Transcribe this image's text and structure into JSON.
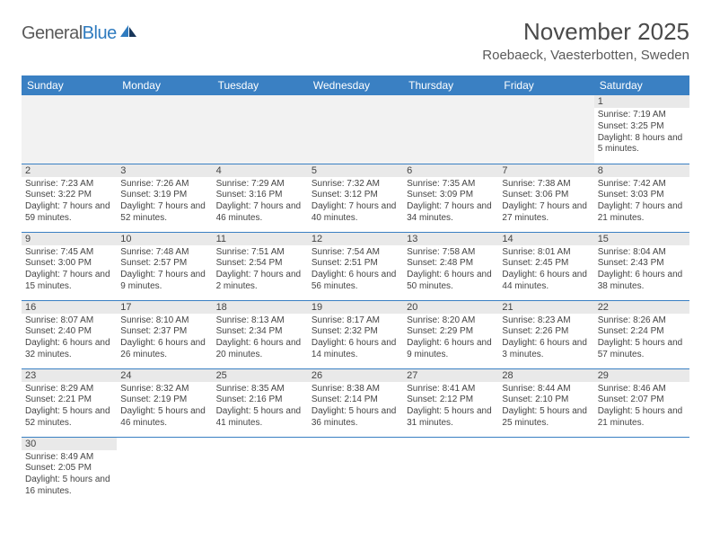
{
  "logo": {
    "text1": "General",
    "text2": "Blue"
  },
  "title": "November 2025",
  "location": "Roebaeck, Vaesterbotten, Sweden",
  "colors": {
    "header_bg": "#3a80c3",
    "header_text": "#ffffff",
    "cell_border": "#3a80c3",
    "daynum_bg": "#e9e9e9",
    "empty_bg": "#f2f2f2",
    "text": "#444444",
    "title_text": "#4a4a4a",
    "logo_gray": "#5a5a5a",
    "logo_blue": "#2f7bbf"
  },
  "day_headers": [
    "Sunday",
    "Monday",
    "Tuesday",
    "Wednesday",
    "Thursday",
    "Friday",
    "Saturday"
  ],
  "weeks": [
    [
      null,
      null,
      null,
      null,
      null,
      null,
      {
        "n": "1",
        "sr": "Sunrise: 7:19 AM",
        "ss": "Sunset: 3:25 PM",
        "dl": "Daylight: 8 hours and 5 minutes."
      }
    ],
    [
      {
        "n": "2",
        "sr": "Sunrise: 7:23 AM",
        "ss": "Sunset: 3:22 PM",
        "dl": "Daylight: 7 hours and 59 minutes."
      },
      {
        "n": "3",
        "sr": "Sunrise: 7:26 AM",
        "ss": "Sunset: 3:19 PM",
        "dl": "Daylight: 7 hours and 52 minutes."
      },
      {
        "n": "4",
        "sr": "Sunrise: 7:29 AM",
        "ss": "Sunset: 3:16 PM",
        "dl": "Daylight: 7 hours and 46 minutes."
      },
      {
        "n": "5",
        "sr": "Sunrise: 7:32 AM",
        "ss": "Sunset: 3:12 PM",
        "dl": "Daylight: 7 hours and 40 minutes."
      },
      {
        "n": "6",
        "sr": "Sunrise: 7:35 AM",
        "ss": "Sunset: 3:09 PM",
        "dl": "Daylight: 7 hours and 34 minutes."
      },
      {
        "n": "7",
        "sr": "Sunrise: 7:38 AM",
        "ss": "Sunset: 3:06 PM",
        "dl": "Daylight: 7 hours and 27 minutes."
      },
      {
        "n": "8",
        "sr": "Sunrise: 7:42 AM",
        "ss": "Sunset: 3:03 PM",
        "dl": "Daylight: 7 hours and 21 minutes."
      }
    ],
    [
      {
        "n": "9",
        "sr": "Sunrise: 7:45 AM",
        "ss": "Sunset: 3:00 PM",
        "dl": "Daylight: 7 hours and 15 minutes."
      },
      {
        "n": "10",
        "sr": "Sunrise: 7:48 AM",
        "ss": "Sunset: 2:57 PM",
        "dl": "Daylight: 7 hours and 9 minutes."
      },
      {
        "n": "11",
        "sr": "Sunrise: 7:51 AM",
        "ss": "Sunset: 2:54 PM",
        "dl": "Daylight: 7 hours and 2 minutes."
      },
      {
        "n": "12",
        "sr": "Sunrise: 7:54 AM",
        "ss": "Sunset: 2:51 PM",
        "dl": "Daylight: 6 hours and 56 minutes."
      },
      {
        "n": "13",
        "sr": "Sunrise: 7:58 AM",
        "ss": "Sunset: 2:48 PM",
        "dl": "Daylight: 6 hours and 50 minutes."
      },
      {
        "n": "14",
        "sr": "Sunrise: 8:01 AM",
        "ss": "Sunset: 2:45 PM",
        "dl": "Daylight: 6 hours and 44 minutes."
      },
      {
        "n": "15",
        "sr": "Sunrise: 8:04 AM",
        "ss": "Sunset: 2:43 PM",
        "dl": "Daylight: 6 hours and 38 minutes."
      }
    ],
    [
      {
        "n": "16",
        "sr": "Sunrise: 8:07 AM",
        "ss": "Sunset: 2:40 PM",
        "dl": "Daylight: 6 hours and 32 minutes."
      },
      {
        "n": "17",
        "sr": "Sunrise: 8:10 AM",
        "ss": "Sunset: 2:37 PM",
        "dl": "Daylight: 6 hours and 26 minutes."
      },
      {
        "n": "18",
        "sr": "Sunrise: 8:13 AM",
        "ss": "Sunset: 2:34 PM",
        "dl": "Daylight: 6 hours and 20 minutes."
      },
      {
        "n": "19",
        "sr": "Sunrise: 8:17 AM",
        "ss": "Sunset: 2:32 PM",
        "dl": "Daylight: 6 hours and 14 minutes."
      },
      {
        "n": "20",
        "sr": "Sunrise: 8:20 AM",
        "ss": "Sunset: 2:29 PM",
        "dl": "Daylight: 6 hours and 9 minutes."
      },
      {
        "n": "21",
        "sr": "Sunrise: 8:23 AM",
        "ss": "Sunset: 2:26 PM",
        "dl": "Daylight: 6 hours and 3 minutes."
      },
      {
        "n": "22",
        "sr": "Sunrise: 8:26 AM",
        "ss": "Sunset: 2:24 PM",
        "dl": "Daylight: 5 hours and 57 minutes."
      }
    ],
    [
      {
        "n": "23",
        "sr": "Sunrise: 8:29 AM",
        "ss": "Sunset: 2:21 PM",
        "dl": "Daylight: 5 hours and 52 minutes."
      },
      {
        "n": "24",
        "sr": "Sunrise: 8:32 AM",
        "ss": "Sunset: 2:19 PM",
        "dl": "Daylight: 5 hours and 46 minutes."
      },
      {
        "n": "25",
        "sr": "Sunrise: 8:35 AM",
        "ss": "Sunset: 2:16 PM",
        "dl": "Daylight: 5 hours and 41 minutes."
      },
      {
        "n": "26",
        "sr": "Sunrise: 8:38 AM",
        "ss": "Sunset: 2:14 PM",
        "dl": "Daylight: 5 hours and 36 minutes."
      },
      {
        "n": "27",
        "sr": "Sunrise: 8:41 AM",
        "ss": "Sunset: 2:12 PM",
        "dl": "Daylight: 5 hours and 31 minutes."
      },
      {
        "n": "28",
        "sr": "Sunrise: 8:44 AM",
        "ss": "Sunset: 2:10 PM",
        "dl": "Daylight: 5 hours and 25 minutes."
      },
      {
        "n": "29",
        "sr": "Sunrise: 8:46 AM",
        "ss": "Sunset: 2:07 PM",
        "dl": "Daylight: 5 hours and 21 minutes."
      }
    ],
    [
      {
        "n": "30",
        "sr": "Sunrise: 8:49 AM",
        "ss": "Sunset: 2:05 PM",
        "dl": "Daylight: 5 hours and 16 minutes."
      },
      null,
      null,
      null,
      null,
      null,
      null
    ]
  ]
}
